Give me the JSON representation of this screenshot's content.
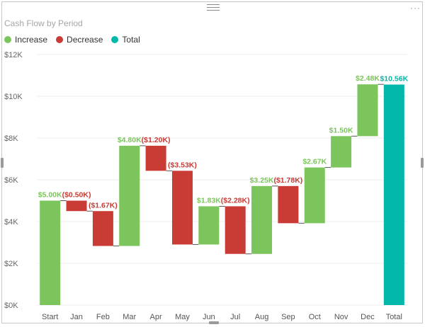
{
  "colors": {
    "increase": "#7CC55C",
    "decrease": "#C93B35",
    "total": "#01B8AA",
    "grid": "#eeeeee",
    "connector": "#555555"
  },
  "ui": {
    "more_options_icon": "ellipsis-icon",
    "drag_handle_icon": "drag-handle-icon"
  },
  "chart_data": {
    "type": "waterfall",
    "title": "Cash Flow by Period",
    "xlabel": "",
    "ylabel": "",
    "ylim": [
      0,
      12000
    ],
    "grid": true,
    "legend_position": "top-left",
    "legend": [
      {
        "key": "increase",
        "label": "Increase"
      },
      {
        "key": "decrease",
        "label": "Decrease"
      },
      {
        "key": "total",
        "label": "Total"
      }
    ],
    "y_ticks": [
      {
        "value": 0,
        "label": "$0K"
      },
      {
        "value": 2000,
        "label": "$2K"
      },
      {
        "value": 4000,
        "label": "$4K"
      },
      {
        "value": 6000,
        "label": "$6K"
      },
      {
        "value": 8000,
        "label": "$8K"
      },
      {
        "value": 10000,
        "label": "$10K"
      },
      {
        "value": 12000,
        "label": "$12K"
      }
    ],
    "categories": [
      "Start",
      "Jan",
      "Feb",
      "Mar",
      "Apr",
      "May",
      "Jun",
      "Jul",
      "Aug",
      "Sep",
      "Oct",
      "Nov",
      "Dec",
      "Total"
    ],
    "bars": [
      {
        "category": "Start",
        "kind": "increase",
        "value": 5000,
        "label": "$5.00K"
      },
      {
        "category": "Jan",
        "kind": "decrease",
        "value": -500,
        "label": "($0.50K)"
      },
      {
        "category": "Feb",
        "kind": "decrease",
        "value": -1670,
        "label": "($1.67K)"
      },
      {
        "category": "Mar",
        "kind": "increase",
        "value": 4800,
        "label": "$4.80K"
      },
      {
        "category": "Apr",
        "kind": "decrease",
        "value": -1200,
        "label": "($1.20K)"
      },
      {
        "category": "May",
        "kind": "decrease",
        "value": -3530,
        "label": "($3.53K)"
      },
      {
        "category": "Jun",
        "kind": "increase",
        "value": 1830,
        "label": "$1.83K"
      },
      {
        "category": "Jul",
        "kind": "decrease",
        "value": -2280,
        "label": "($2.28K)"
      },
      {
        "category": "Aug",
        "kind": "increase",
        "value": 3250,
        "label": "$3.25K"
      },
      {
        "category": "Sep",
        "kind": "decrease",
        "value": -1780,
        "label": "($1.78K)"
      },
      {
        "category": "Oct",
        "kind": "increase",
        "value": 2670,
        "label": "$2.67K"
      },
      {
        "category": "Nov",
        "kind": "increase",
        "value": 1500,
        "label": "$1.50K"
      },
      {
        "category": "Dec",
        "kind": "increase",
        "value": 2480,
        "label": "$2.48K"
      },
      {
        "category": "Total",
        "kind": "total",
        "value": 10560,
        "label": "$10.56K"
      }
    ]
  }
}
